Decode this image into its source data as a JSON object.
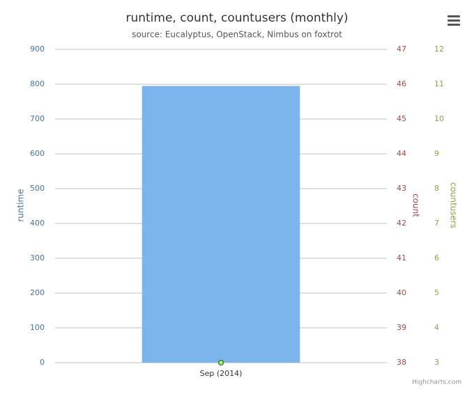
{
  "chart_data": {
    "type": "bar",
    "title": "runtime, count, countusers (monthly)",
    "subtitle": "source: Eucalyptus, OpenStack, Nimbus on foxtrot",
    "credits": "Highcharts.com",
    "categories": [
      "Sep (2014)"
    ],
    "ylabel": "runtime",
    "y2label": "count",
    "y3label": "countusers",
    "ylim": [
      0,
      900
    ],
    "yticks": [
      0,
      100,
      200,
      300,
      400,
      500,
      600,
      700,
      800,
      900
    ],
    "y2lim": [
      38,
      47
    ],
    "y2ticks": [
      38,
      39,
      40,
      41,
      42,
      43,
      44,
      45,
      46,
      47
    ],
    "y3lim": [
      3,
      12
    ],
    "y3ticks": [
      3,
      4,
      5,
      6,
      7,
      8,
      9,
      10,
      11,
      12
    ],
    "grid": true,
    "series": [
      {
        "name": "runtime",
        "type": "bar",
        "color": "#7cb5ec",
        "values": [
          795
        ]
      },
      {
        "name": "count",
        "type": "line",
        "axis": "y2",
        "color": "#434348",
        "values": [
          38
        ]
      },
      {
        "name": "countusers",
        "type": "line",
        "axis": "y3",
        "color": "#90ed7d",
        "values": [
          3
        ]
      }
    ]
  }
}
